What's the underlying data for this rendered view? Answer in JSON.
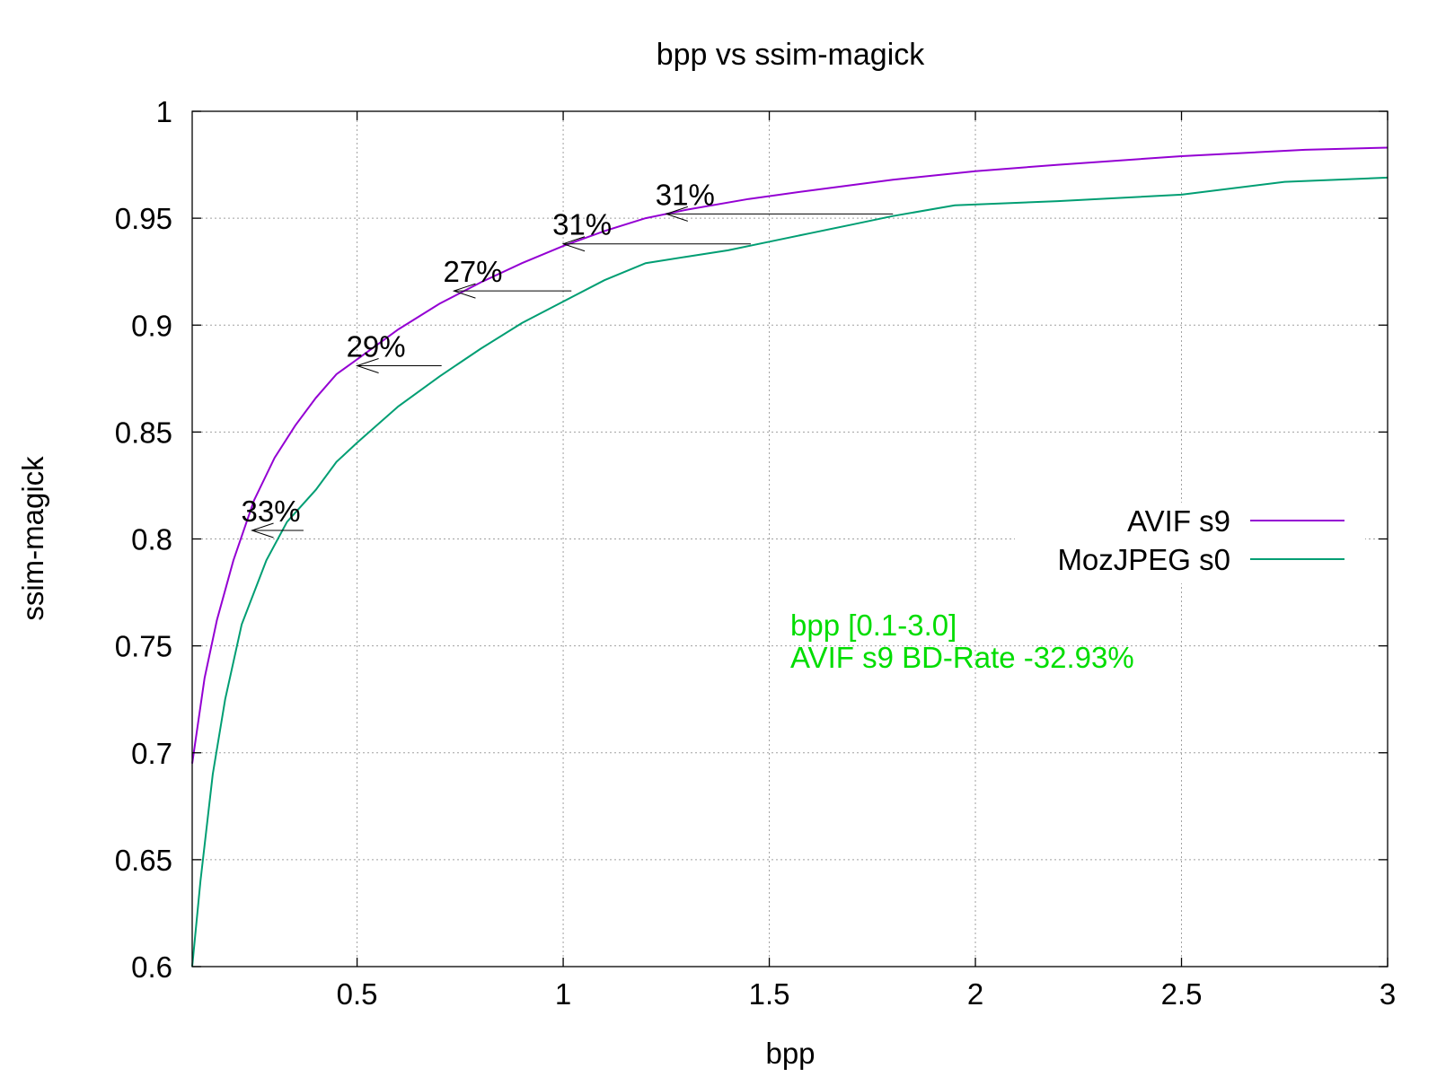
{
  "chart_data": {
    "type": "line",
    "title": "bpp vs ssim-magick",
    "xlabel": "bpp",
    "ylabel": "ssim-magick",
    "xlim": [
      0.1,
      3.0
    ],
    "ylim": [
      0.6,
      1.0
    ],
    "xticks": [
      0.5,
      1,
      1.5,
      2,
      2.5,
      3
    ],
    "yticks": [
      0.6,
      0.65,
      0.7,
      0.75,
      0.8,
      0.85,
      0.9,
      0.95,
      1
    ],
    "x_tick_labels": [
      "0.5",
      "1",
      "1.5",
      "2",
      "2.5",
      "3"
    ],
    "y_tick_labels": [
      "0.6",
      "0.65",
      "0.7",
      "0.75",
      "0.8",
      "0.85",
      "0.9",
      "0.95",
      "1"
    ],
    "grid": true,
    "legend_position": "right",
    "series": [
      {
        "name": "AVIF s9",
        "color": "#9400d3",
        "points": [
          [
            0.1,
            0.695
          ],
          [
            0.13,
            0.735
          ],
          [
            0.16,
            0.762
          ],
          [
            0.2,
            0.79
          ],
          [
            0.25,
            0.818
          ],
          [
            0.3,
            0.838
          ],
          [
            0.35,
            0.853
          ],
          [
            0.4,
            0.866
          ],
          [
            0.45,
            0.877
          ],
          [
            0.5,
            0.884
          ],
          [
            0.6,
            0.898
          ],
          [
            0.7,
            0.91
          ],
          [
            0.8,
            0.92
          ],
          [
            0.9,
            0.929
          ],
          [
            1.0,
            0.937
          ],
          [
            1.1,
            0.944
          ],
          [
            1.2,
            0.95
          ],
          [
            1.3,
            0.954
          ],
          [
            1.45,
            0.959
          ],
          [
            1.6,
            0.963
          ],
          [
            1.8,
            0.968
          ],
          [
            2.0,
            0.972
          ],
          [
            2.2,
            0.975
          ],
          [
            2.5,
            0.979
          ],
          [
            2.8,
            0.982
          ],
          [
            3.0,
            0.983
          ]
        ]
      },
      {
        "name": "MozJPEG s0",
        "color": "#009e73",
        "points": [
          [
            0.1,
            0.6
          ],
          [
            0.12,
            0.64
          ],
          [
            0.15,
            0.69
          ],
          [
            0.18,
            0.725
          ],
          [
            0.22,
            0.76
          ],
          [
            0.28,
            0.79
          ],
          [
            0.33,
            0.808
          ],
          [
            0.4,
            0.823
          ],
          [
            0.45,
            0.836
          ],
          [
            0.5,
            0.845
          ],
          [
            0.6,
            0.862
          ],
          [
            0.7,
            0.876
          ],
          [
            0.8,
            0.889
          ],
          [
            0.9,
            0.901
          ],
          [
            1.0,
            0.911
          ],
          [
            1.1,
            0.921
          ],
          [
            1.2,
            0.929
          ],
          [
            1.3,
            0.932
          ],
          [
            1.4,
            0.935
          ],
          [
            1.5,
            0.939
          ],
          [
            1.6,
            0.943
          ],
          [
            1.7,
            0.947
          ],
          [
            1.8,
            0.951
          ],
          [
            1.95,
            0.956
          ],
          [
            2.2,
            0.958
          ],
          [
            2.5,
            0.961
          ],
          [
            2.75,
            0.967
          ],
          [
            3.0,
            0.969
          ]
        ]
      }
    ],
    "annotations": [
      {
        "text": "33%",
        "y": 0.804,
        "x_from": 0.37,
        "x_to": 0.245
      },
      {
        "text": "29%",
        "y": 0.881,
        "x_from": 0.705,
        "x_to": 0.5
      },
      {
        "text": "27%",
        "y": 0.916,
        "x_from": 1.02,
        "x_to": 0.735
      },
      {
        "text": "31%",
        "y": 0.938,
        "x_from": 1.455,
        "x_to": 1.0
      },
      {
        "text": "31%",
        "y": 0.952,
        "x_from": 1.8,
        "x_to": 1.25
      }
    ],
    "info_color": "#00dd00",
    "info_lines": [
      "bpp [0.1-3.0]",
      "AVIF s9 BD-Rate -32.93%"
    ]
  }
}
